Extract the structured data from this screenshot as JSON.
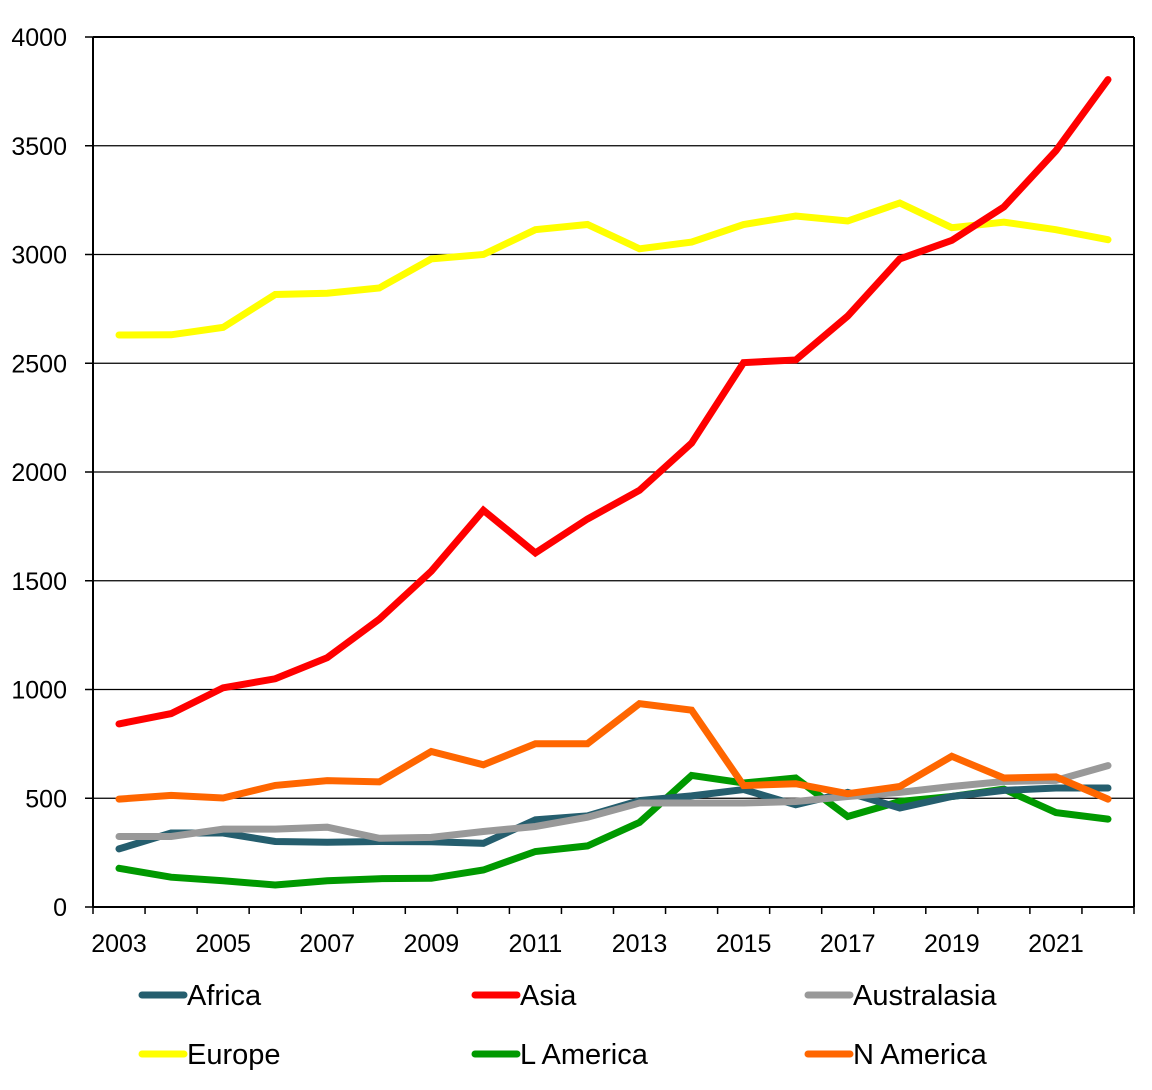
{
  "chart_data": {
    "type": "line",
    "title": "",
    "xlabel": "",
    "ylabel": "",
    "ylim": [
      0,
      4000
    ],
    "yticks": [
      0,
      500,
      1000,
      1500,
      2000,
      2500,
      3000,
      3500,
      4000
    ],
    "ytick_labels": [
      "0",
      "500",
      "1000",
      "1500",
      "2000",
      "2500",
      "3000",
      "3500",
      "4000"
    ],
    "x": [
      2003,
      2004,
      2005,
      2006,
      2007,
      2008,
      2009,
      2010,
      2011,
      2012,
      2013,
      2014,
      2015,
      2016,
      2017,
      2018,
      2019,
      2020,
      2021,
      2022
    ],
    "xtick_labels": [
      "2003",
      "2005",
      "2007",
      "2009",
      "2011",
      "2013",
      "2015",
      "2017",
      "2019",
      "2021"
    ],
    "grid": "horizontal",
    "legend_position": "bottom",
    "series": [
      {
        "name": "Africa",
        "color": "#255E6E",
        "values": [
          267,
          340,
          340,
          301,
          298,
          301,
          300,
          293,
          401,
          419,
          489,
          511,
          540,
          470,
          527,
          455,
          508,
          536,
          547,
          547
        ]
      },
      {
        "name": "Asia",
        "color": "#FF0000",
        "values": [
          842,
          889,
          1008,
          1049,
          1146,
          1323,
          1544,
          1824,
          1628,
          1784,
          1916,
          2133,
          2503,
          2515,
          2717,
          2980,
          3065,
          3219,
          3477,
          3804
        ]
      },
      {
        "name": "Australasia",
        "color": "#999999",
        "values": [
          324,
          324,
          358,
          358,
          367,
          316,
          320,
          347,
          370,
          413,
          478,
          478,
          478,
          485,
          508,
          527,
          554,
          577,
          582,
          650
        ]
      },
      {
        "name": "Europe",
        "color": "#FFFF00",
        "values": [
          2630,
          2631,
          2665,
          2816,
          2822,
          2846,
          2980,
          3000,
          3114,
          3138,
          3026,
          3057,
          3138,
          3177,
          3154,
          3237,
          3123,
          3149,
          3114,
          3068
        ]
      },
      {
        "name": "L America",
        "color": "#009900",
        "values": [
          178,
          137,
          121,
          101,
          121,
          130,
          132,
          170,
          255,
          281,
          389,
          605,
          570,
          593,
          416,
          485,
          508,
          542,
          434,
          404
        ]
      },
      {
        "name": "N America",
        "color": "#FF6600",
        "values": [
          496,
          513,
          501,
          559,
          581,
          575,
          715,
          654,
          751,
          751,
          935,
          905,
          558,
          567,
          521,
          554,
          693,
          593,
          598,
          496
        ]
      }
    ]
  }
}
